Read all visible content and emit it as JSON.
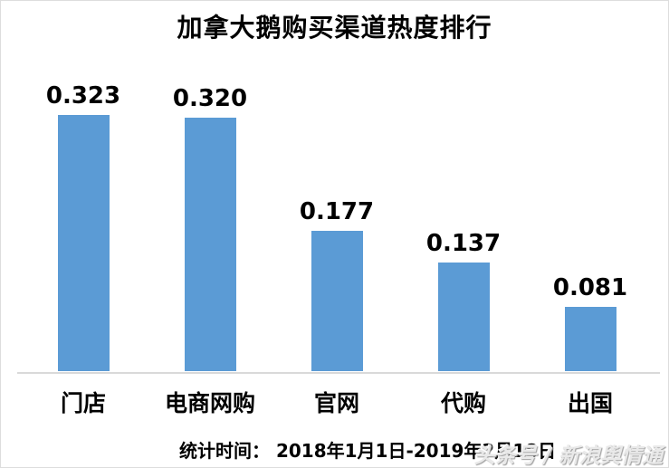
{
  "title": "加拿大鹅购买渠道热度排行",
  "chart_data": {
    "type": "bar",
    "title": "加拿大鹅购买渠道热度排行",
    "categories": [
      "门店",
      "电商网购",
      "官网",
      "代购",
      "出国"
    ],
    "values": [
      0.323,
      0.32,
      0.177,
      0.137,
      0.081
    ],
    "value_labels": [
      "0.323",
      "0.320",
      "0.177",
      "0.137",
      "0.081"
    ],
    "xlabel": "",
    "ylabel": "",
    "ylim": [
      0,
      0.35
    ],
    "grid": false,
    "legend": "none",
    "bar_color": "#5b9bd5",
    "axis_color": "#d9d9d9"
  },
  "footer": {
    "stats_label": "统计时间： 2018年1月1日-2019年2月18日",
    "watermark": "头条号 / 新浪舆情通"
  }
}
